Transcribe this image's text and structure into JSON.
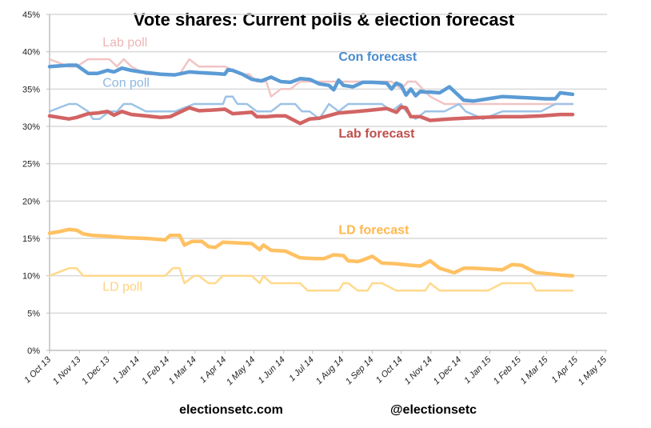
{
  "chart_data": {
    "type": "line",
    "title": "Vote shares: Current polls & election forecast",
    "xlabel": "",
    "ylabel": "",
    "x_start_date": "2013-10-01",
    "x_unit": "days since 1 Oct 13",
    "xlim": [
      0,
      577
    ],
    "ylim": [
      0,
      45
    ],
    "grid": true,
    "y_ticks": [
      {
        "value": 0,
        "label": "0%"
      },
      {
        "value": 5,
        "label": "5%"
      },
      {
        "value": 10,
        "label": "10%"
      },
      {
        "value": 15,
        "label": "15%"
      },
      {
        "value": 20,
        "label": "20%"
      },
      {
        "value": 25,
        "label": "25%"
      },
      {
        "value": 30,
        "label": "30%"
      },
      {
        "value": 35,
        "label": "35%"
      },
      {
        "value": 40,
        "label": "40%"
      },
      {
        "value": 45,
        "label": "45%"
      }
    ],
    "x_ticks": [
      {
        "value": 0,
        "label": "1 Oct 13"
      },
      {
        "value": 31,
        "label": "1 Nov 13"
      },
      {
        "value": 61,
        "label": "1 Dec 13"
      },
      {
        "value": 92,
        "label": "1 Jan 14"
      },
      {
        "value": 123,
        "label": "1 Feb 14"
      },
      {
        "value": 151,
        "label": "1 Mar 14"
      },
      {
        "value": 182,
        "label": "1 Apr 14"
      },
      {
        "value": 212,
        "label": "1 May 14"
      },
      {
        "value": 243,
        "label": "1 Jun 14"
      },
      {
        "value": 273,
        "label": "1 Jul 14"
      },
      {
        "value": 304,
        "label": "1 Aug 14"
      },
      {
        "value": 335,
        "label": "1 Sep 14"
      },
      {
        "value": 365,
        "label": "1 Oct 14"
      },
      {
        "value": 396,
        "label": "1 Nov 14"
      },
      {
        "value": 426,
        "label": "1 Dec 14"
      },
      {
        "value": 457,
        "label": "1 Jan 15"
      },
      {
        "value": 488,
        "label": "1 Feb 15"
      },
      {
        "value": 516,
        "label": "1 Mar 15"
      },
      {
        "value": 547,
        "label": "1 Apr 15"
      },
      {
        "value": 577,
        "label": "1 May 15"
      }
    ],
    "series": [
      {
        "name": "Lab poll",
        "color": "#F2C4C4",
        "weight": "thin",
        "x": [
          0,
          20,
          28,
          40,
          55,
          62,
          70,
          77,
          85,
          100,
          120,
          135,
          145,
          155,
          170,
          182,
          200,
          207,
          215,
          225,
          230,
          240,
          250,
          260,
          270,
          280,
          300,
          320,
          335,
          355,
          365,
          372,
          380,
          395,
          410,
          425,
          450,
          480,
          510,
          543
        ],
        "values": [
          39,
          38,
          38,
          39,
          39,
          39,
          38,
          39,
          38,
          37,
          37,
          37,
          39,
          38,
          38,
          38,
          37,
          37,
          36,
          36,
          34,
          35,
          35,
          36,
          36,
          36,
          36,
          36,
          36,
          36,
          35,
          36,
          36,
          34,
          33,
          33,
          33,
          33,
          33,
          33
        ]
      },
      {
        "name": "Con poll",
        "color": "#9DC3E6",
        "weight": "thin",
        "x": [
          0,
          20,
          28,
          40,
          45,
          52,
          62,
          70,
          77,
          85,
          100,
          120,
          130,
          150,
          170,
          180,
          183,
          190,
          195,
          205,
          215,
          222,
          230,
          240,
          255,
          262,
          270,
          280,
          290,
          300,
          310,
          320,
          335,
          345,
          355,
          365,
          370,
          380,
          390,
          410,
          425,
          432,
          450,
          470,
          510,
          525,
          543
        ],
        "values": [
          32,
          33,
          33,
          32,
          31,
          31,
          32,
          32,
          33,
          33,
          32,
          32,
          32,
          33,
          33,
          33,
          34,
          34,
          33,
          33,
          32,
          32,
          32,
          33,
          33,
          32,
          32,
          31,
          33,
          32,
          33,
          33,
          33,
          33,
          32,
          33,
          32,
          31,
          32,
          32,
          33,
          32,
          31,
          32,
          32,
          33,
          33
        ]
      },
      {
        "name": "Con forecast",
        "color": "#5B9BD5",
        "weight": "thick",
        "x": [
          0,
          10,
          20,
          28,
          40,
          50,
          60,
          67,
          75,
          85,
          100,
          115,
          130,
          145,
          155,
          170,
          182,
          185,
          190,
          200,
          210,
          220,
          230,
          240,
          250,
          260,
          270,
          280,
          290,
          295,
          300,
          305,
          315,
          325,
          335,
          350,
          355,
          360,
          365,
          370,
          375,
          380,
          385,
          390,
          395,
          405,
          415,
          420,
          430,
          440,
          455,
          470,
          485,
          500,
          515,
          525,
          530,
          543
        ],
        "values": [
          38,
          38.1,
          38.2,
          38.2,
          37.1,
          37.1,
          37.5,
          37.3,
          37.8,
          37.5,
          37.2,
          37.0,
          36.9,
          37.3,
          37.2,
          37.1,
          37.0,
          37.6,
          37.5,
          37.0,
          36.3,
          36.1,
          36.6,
          36.0,
          35.9,
          36.4,
          36.3,
          35.7,
          35.5,
          34.9,
          36.2,
          35.5,
          35.3,
          35.9,
          35.9,
          35.8,
          35.0,
          35.8,
          35.5,
          34.2,
          35.0,
          34.1,
          34.7,
          34.6,
          34.6,
          34.5,
          35.3,
          34.7,
          33.5,
          33.4,
          33.7,
          34.0,
          33.9,
          33.8,
          33.7,
          33.7,
          34.5,
          34.3
        ]
      },
      {
        "name": "Lab forecast",
        "color": "#D26464",
        "weight": "thick",
        "x": [
          0,
          20,
          28,
          40,
          50,
          60,
          67,
          75,
          85,
          100,
          115,
          125,
          145,
          155,
          170,
          182,
          190,
          200,
          210,
          215,
          225,
          235,
          245,
          260,
          270,
          280,
          300,
          320,
          335,
          350,
          360,
          365,
          370,
          375,
          380,
          385,
          395,
          405,
          415,
          430,
          450,
          470,
          490,
          510,
          530,
          543
        ],
        "values": [
          31.4,
          31.0,
          31.2,
          31.7,
          31.8,
          32.0,
          31.5,
          32.0,
          31.6,
          31.4,
          31.2,
          31.3,
          32.5,
          32.1,
          32.2,
          32.3,
          31.7,
          31.8,
          31.9,
          31.3,
          31.3,
          31.4,
          31.4,
          30.4,
          31.0,
          31.1,
          31.8,
          32.0,
          32.2,
          32.4,
          31.9,
          32.6,
          32.5,
          31.3,
          31.3,
          31.3,
          30.8,
          30.9,
          31.0,
          31.1,
          31.2,
          31.3,
          31.3,
          31.4,
          31.6,
          31.6
        ]
      },
      {
        "name": "LD forecast",
        "color": "#FFC163",
        "weight": "thick",
        "x": [
          0,
          10,
          20,
          28,
          35,
          45,
          60,
          80,
          100,
          120,
          125,
          135,
          140,
          148,
          158,
          165,
          172,
          180,
          195,
          210,
          218,
          222,
          230,
          245,
          260,
          275,
          285,
          295,
          305,
          310,
          320,
          325,
          335,
          345,
          360,
          375,
          385,
          395,
          405,
          420,
          430,
          440,
          455,
          470,
          480,
          490,
          505,
          515,
          530,
          543
        ],
        "values": [
          15.7,
          15.9,
          16.2,
          16.1,
          15.6,
          15.4,
          15.3,
          15.1,
          15.0,
          14.8,
          15.4,
          15.4,
          14.1,
          14.6,
          14.6,
          13.9,
          13.8,
          14.5,
          14.4,
          14.3,
          13.5,
          14.1,
          13.4,
          13.3,
          12.4,
          12.3,
          12.3,
          12.8,
          12.7,
          12.0,
          11.9,
          12.1,
          12.6,
          11.7,
          11.6,
          11.4,
          11.3,
          12.0,
          11.0,
          10.4,
          11.0,
          11.0,
          10.9,
          10.8,
          11.5,
          11.4,
          10.4,
          10.3,
          10.1,
          10.0
        ]
      },
      {
        "name": "LD poll",
        "color": "#FFD98C",
        "weight": "thin",
        "x": [
          0,
          20,
          28,
          35,
          60,
          100,
          120,
          128,
          135,
          140,
          150,
          155,
          165,
          172,
          180,
          210,
          218,
          222,
          230,
          260,
          268,
          275,
          285,
          300,
          305,
          310,
          320,
          330,
          335,
          345,
          360,
          370,
          380,
          390,
          395,
          405,
          420,
          430,
          440,
          455,
          470,
          480,
          490,
          500,
          505,
          520,
          543
        ],
        "values": [
          10,
          11,
          11,
          10,
          10,
          10,
          10,
          11,
          11,
          9,
          10,
          10,
          9,
          9,
          10,
          10,
          9,
          10,
          9,
          9,
          8,
          8,
          8,
          8,
          9,
          9,
          8,
          8,
          9,
          9,
          8,
          8,
          8,
          8,
          9,
          8,
          8,
          8,
          8,
          8,
          9,
          9,
          9,
          9,
          8,
          8,
          8
        ]
      }
    ],
    "annotations": [
      {
        "text": "Lab poll",
        "series": "Lab poll",
        "x": 55,
        "y": 40.7
      },
      {
        "text": "Con forecast",
        "series": "Con forecast",
        "x": 300,
        "y": 38.8
      },
      {
        "text": "Con poll",
        "series": "Con poll",
        "x": 55,
        "y": 35.3
      },
      {
        "text": "Lab forecast",
        "series": "Lab forecast",
        "x": 300,
        "y": 28.5
      },
      {
        "text": "LD forecast",
        "series": "LD forecast",
        "x": 300,
        "y": 15.6
      },
      {
        "text": "LD poll",
        "series": "LD poll",
        "x": 55,
        "y": 8.0
      }
    ],
    "legend": "none (inline labels)"
  },
  "footer": {
    "website": "electionsetc.com",
    "handle": "@electionsetc"
  }
}
